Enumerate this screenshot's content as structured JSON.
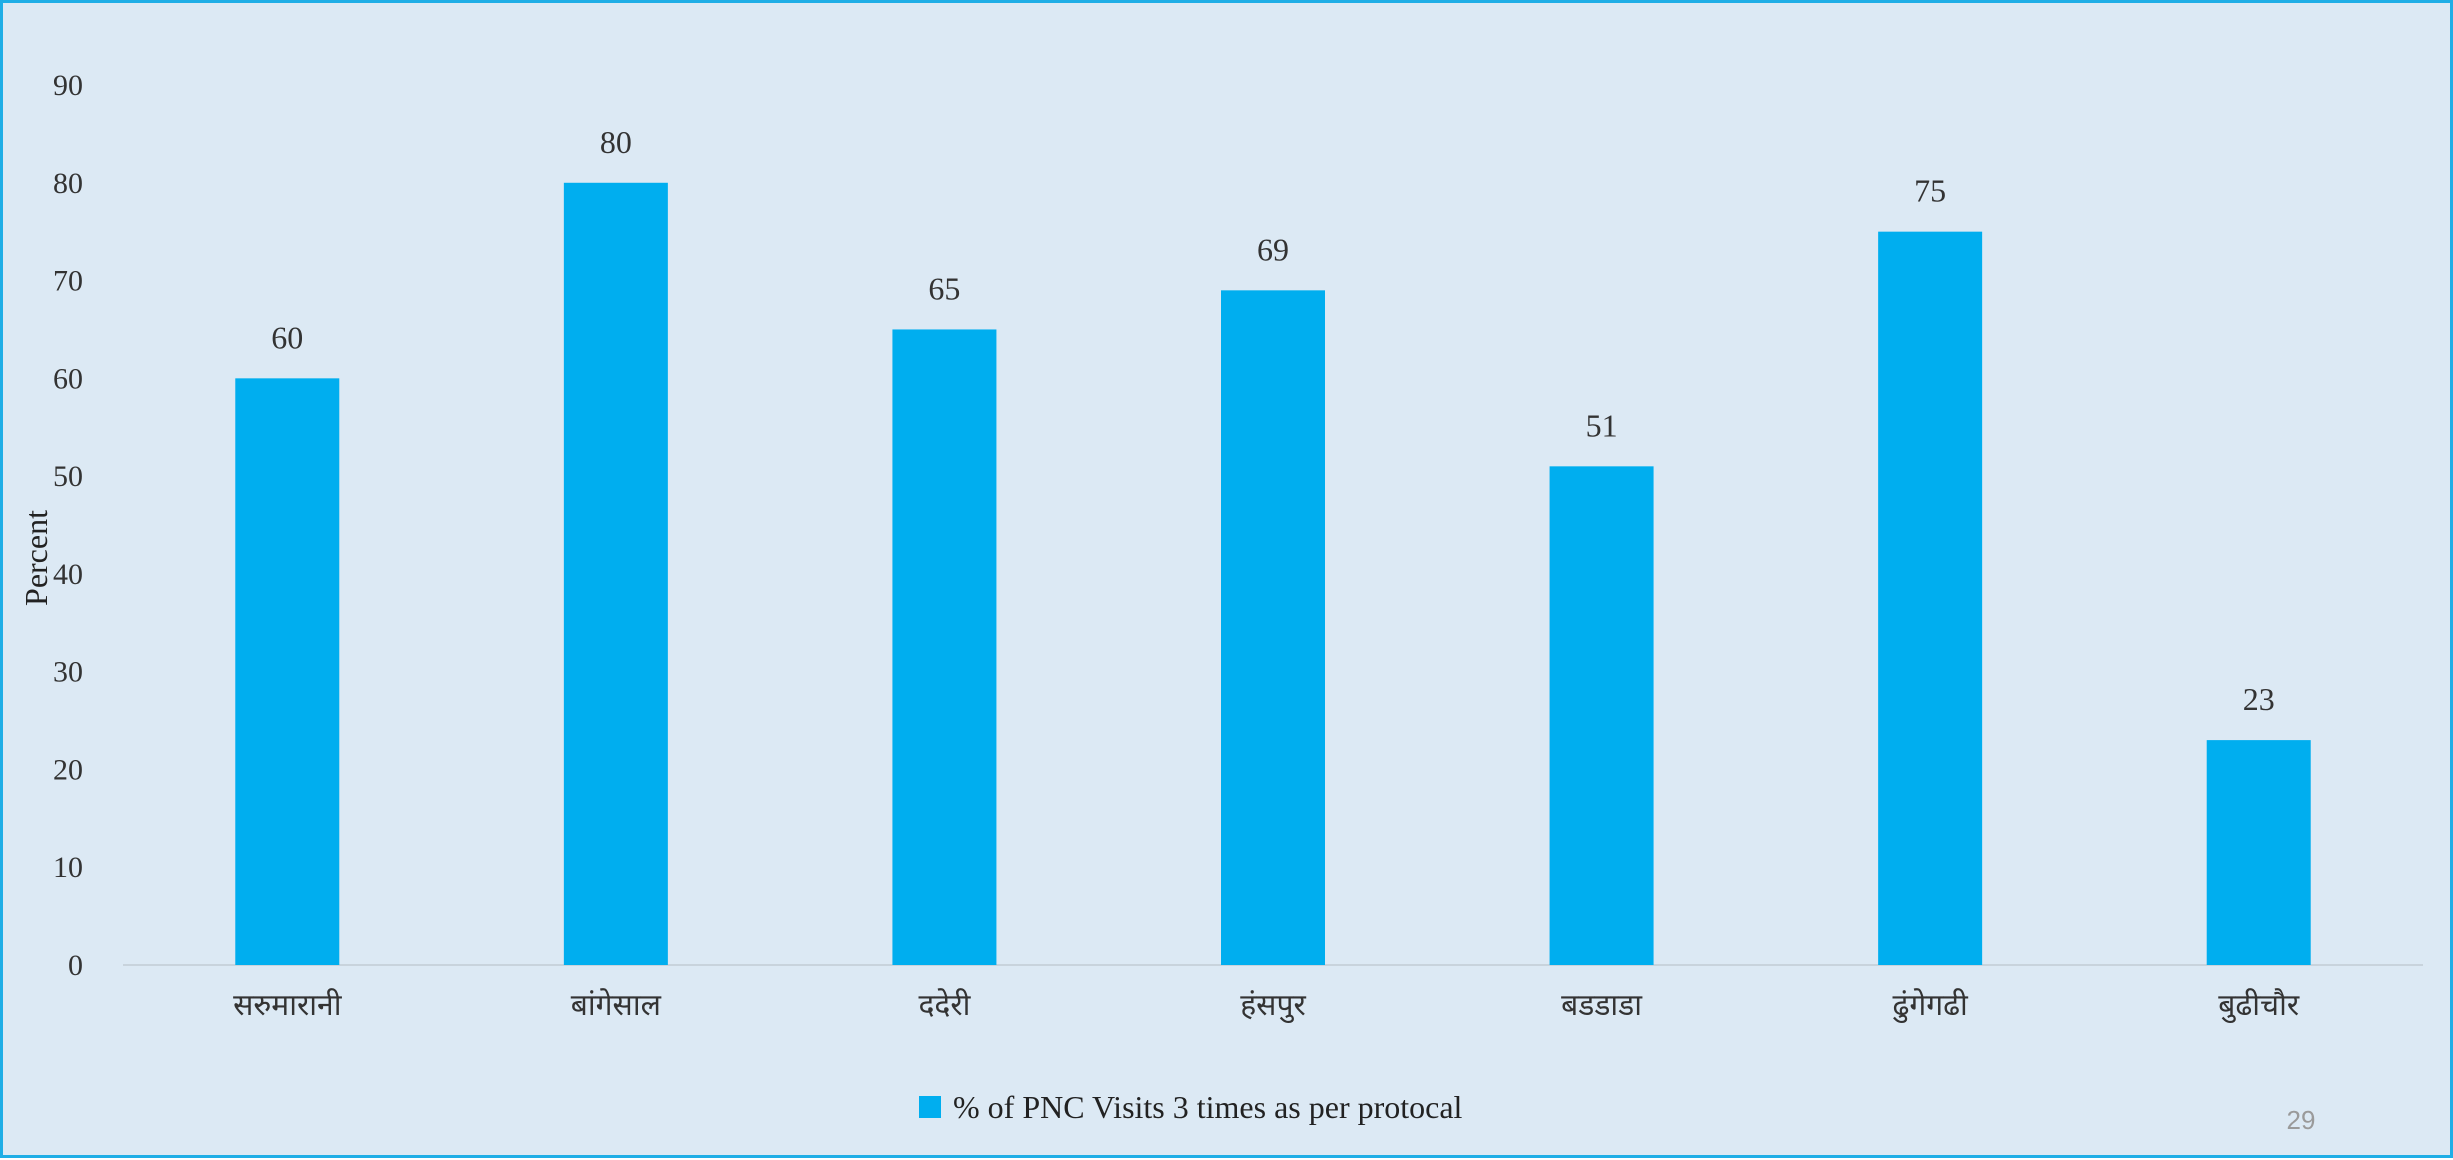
{
  "chart_data": {
    "type": "bar",
    "categories": [
      "सरुमारानी",
      "बांगेसाल",
      "ददेरी",
      "हंसपुर",
      "बडडाडा",
      "ढुंगेगढी",
      "बुढीचौर"
    ],
    "series": [
      {
        "name": "% of PNC Visits 3 times as per protocal",
        "values": [
          60,
          80,
          65,
          69,
          51,
          75,
          23
        ]
      }
    ],
    "title": "",
    "xlabel": "",
    "ylabel": "Percent",
    "ylim": [
      0,
      90
    ],
    "yticks": [
      0,
      10,
      20,
      30,
      40,
      50,
      60,
      70,
      80,
      90
    ],
    "grid": false,
    "legend_position": "bottom",
    "data_labels": true,
    "bar_color": "#00aeef",
    "background_color": "#dce9f4",
    "border_color": "#1faee6"
  },
  "page_number": "29"
}
